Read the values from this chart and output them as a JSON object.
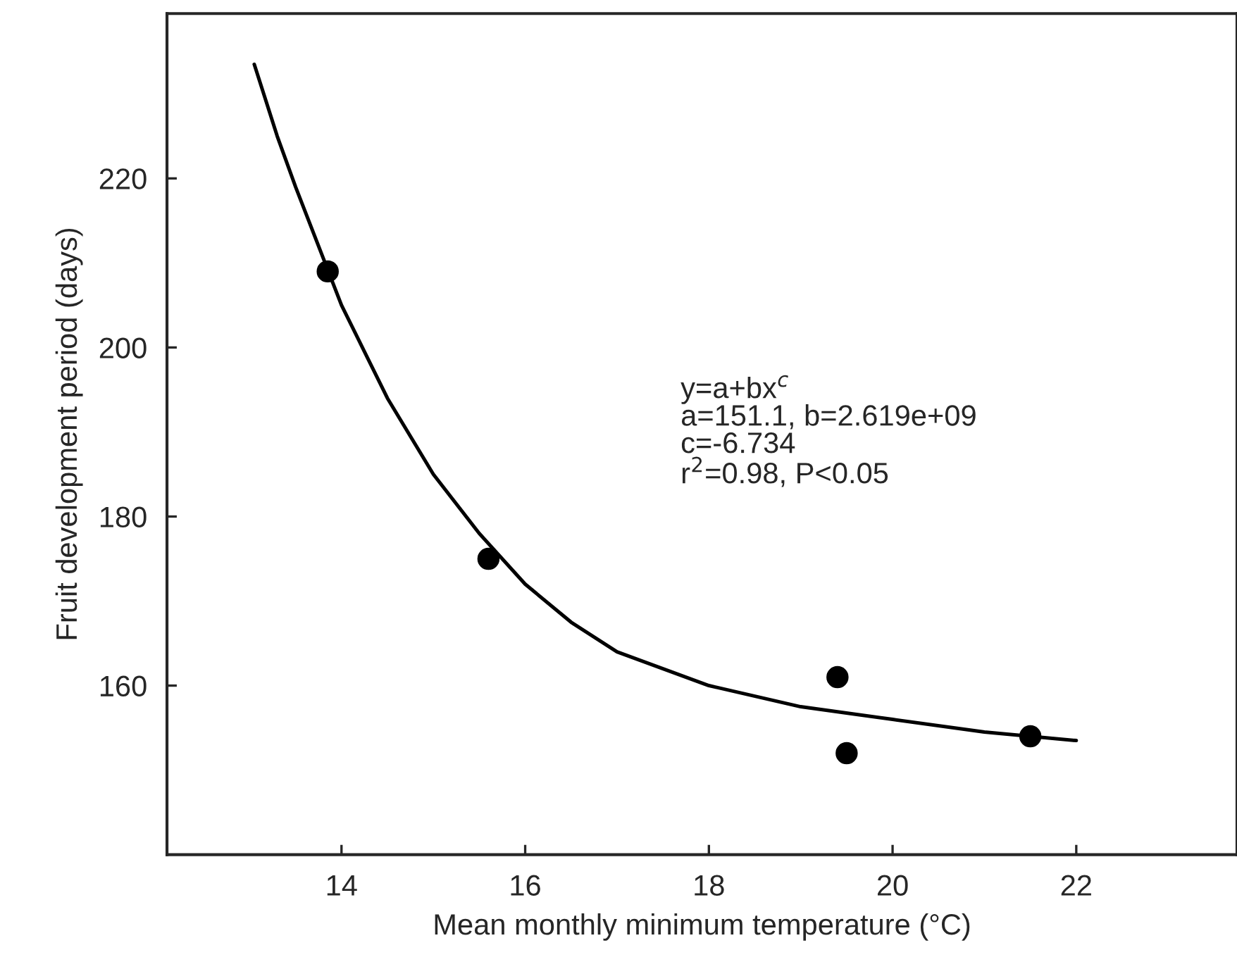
{
  "chart_data": {
    "type": "scatter",
    "xlabel": "Mean monthly minimum temperature (°C)",
    "ylabel": "Fruit development period (days)",
    "xlim": [
      12.1,
      23.75
    ],
    "xticks": [
      14,
      16,
      18,
      20,
      22
    ],
    "ylim": [
      140,
      239.5
    ],
    "yticks": [
      160,
      180,
      200,
      220
    ],
    "grid": false,
    "legend": false,
    "series": [
      {
        "color": "#000000",
        "marker": "circle",
        "x": [
          13.85,
          15.6,
          19.4,
          19.5,
          21.5
        ],
        "values": [
          209,
          175,
          161,
          152,
          154
        ]
      },
      {
        "type": "line",
        "color": "#000000",
        "marker": "none",
        "line_style": "solid",
        "x": [
          13.05,
          13.3,
          13.5,
          13.75,
          14,
          14.5,
          15,
          15.5,
          16,
          16.5,
          17,
          18,
          19,
          20,
          21,
          22
        ],
        "values": [
          233.5,
          225,
          219,
          212,
          205,
          194,
          185,
          178,
          172,
          167.5,
          164,
          160,
          157.5,
          156,
          154.5,
          153.5
        ]
      }
    ],
    "annotations": [
      "y=a+bx$^{c}$\na=151.1, b=2.619e+09\nc=-6.734\nr$^{2}$=0.98, P<0.05"
    ]
  }
}
